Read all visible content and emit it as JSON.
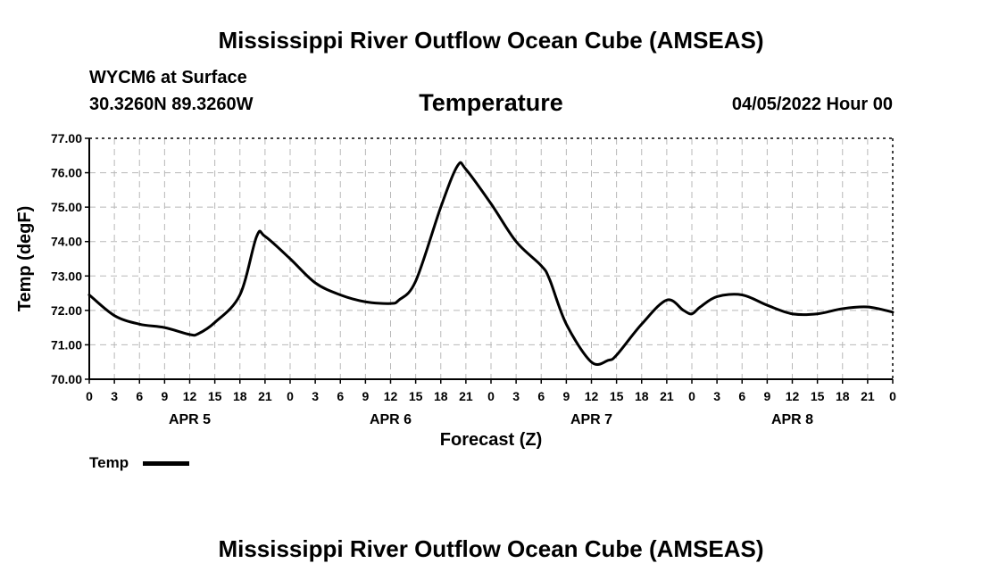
{
  "page": {
    "title_top": "Mississippi River Outflow Ocean Cube (AMSEAS)",
    "title_bottom": "Mississippi River Outflow Ocean Cube (AMSEAS)",
    "station": "WYCM6 at Surface",
    "coords": "30.3260N  89.3260W",
    "date": "04/05/2022 Hour 00"
  },
  "chart_data": {
    "type": "line",
    "title": "Temperature",
    "xlabel": "Forecast (Z)",
    "ylabel": "Temp (degF)",
    "ylim": [
      70,
      77
    ],
    "xlim": [
      0,
      96
    ],
    "grid": true,
    "yticks": [
      "70.00",
      "71.00",
      "72.00",
      "73.00",
      "74.00",
      "75.00",
      "76.00",
      "77.00"
    ],
    "xticks": [
      "0",
      "3",
      "6",
      "9",
      "12",
      "15",
      "18",
      "21",
      "0",
      "3",
      "6",
      "9",
      "12",
      "15",
      "18",
      "21",
      "0",
      "3",
      "6",
      "9",
      "12",
      "15",
      "18",
      "21",
      "0",
      "3",
      "6",
      "9",
      "12",
      "15",
      "18",
      "21",
      "0"
    ],
    "day_labels": [
      {
        "label": "APR 5",
        "hour": 12
      },
      {
        "label": "APR 6",
        "hour": 36
      },
      {
        "label": "APR 7",
        "hour": 60
      },
      {
        "label": "APR 8",
        "hour": 84
      }
    ],
    "legend": [
      {
        "name": "Temp",
        "position": "bottom-left"
      }
    ],
    "series": [
      {
        "name": "Temp",
        "x": [
          0,
          3,
          6,
          9,
          12,
          13,
          15,
          18,
          20,
          21,
          24,
          27,
          30,
          33,
          36,
          37,
          39,
          42,
          44,
          45,
          48,
          51,
          54,
          55,
          57,
          60,
          62,
          63,
          66,
          69,
          71,
          72,
          73,
          75,
          78,
          81,
          84,
          87,
          90,
          93,
          96
        ],
        "values": [
          72.45,
          71.85,
          71.6,
          71.5,
          71.3,
          71.32,
          71.65,
          72.45,
          74.15,
          74.15,
          73.5,
          72.8,
          72.45,
          72.25,
          72.2,
          72.3,
          72.85,
          75.0,
          76.2,
          76.1,
          75.1,
          74.0,
          73.3,
          72.9,
          71.6,
          70.5,
          70.55,
          70.7,
          71.6,
          72.3,
          72.0,
          71.9,
          72.1,
          72.4,
          72.45,
          72.15,
          71.9,
          71.9,
          72.05,
          72.1,
          71.95
        ]
      }
    ]
  }
}
